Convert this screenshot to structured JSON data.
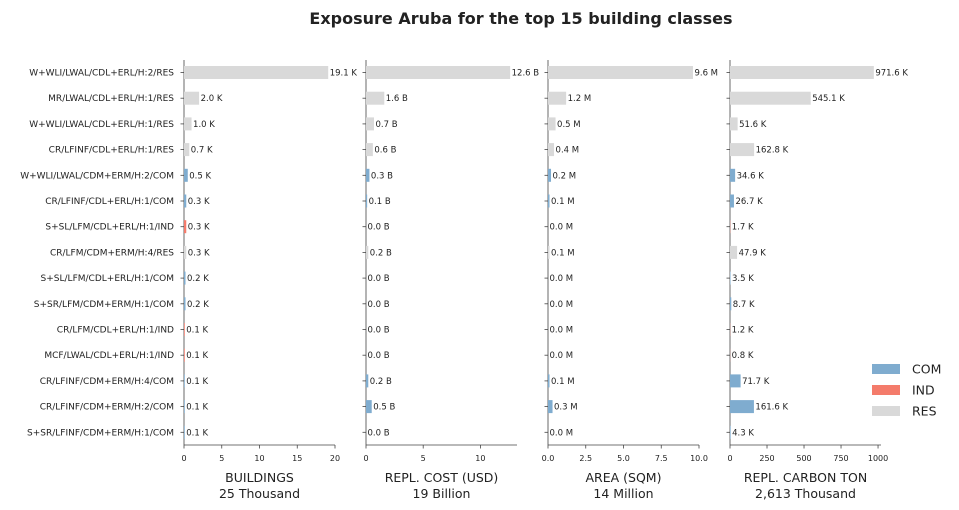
{
  "chart_data": {
    "type": "bar",
    "orientation": "horizontal",
    "title": "Exposure Aruba for the top 15 building classes",
    "categories": [
      "W+WLI/LWAL/CDL+ERL/H:2/RES",
      "MR/LWAL/CDL+ERL/H:1/RES",
      "W+WLI/LWAL/CDL+ERL/H:1/RES",
      "CR/LFINF/CDL+ERL/H:1/RES",
      "W+WLI/LWAL/CDM+ERM/H:2/COM",
      "CR/LFINF/CDL+ERL/H:1/COM",
      "S+SL/LFM/CDL+ERL/H:1/IND",
      "CR/LFM/CDM+ERM/H:4/RES",
      "S+SL/LFM/CDL+ERL/H:1/COM",
      "S+SR/LFM/CDM+ERM/H:1/COM",
      "CR/LFM/CDL+ERL/H:1/IND",
      "MCF/LWAL/CDL+ERL/H:1/IND",
      "CR/LFINF/CDM+ERM/H:4/COM",
      "CR/LFINF/CDM+ERM/H:2/COM",
      "S+SR/LFINF/CDM+ERM/H:1/COM"
    ],
    "occupancy": [
      "RES",
      "RES",
      "RES",
      "RES",
      "COM",
      "COM",
      "IND",
      "RES",
      "COM",
      "COM",
      "IND",
      "IND",
      "COM",
      "COM",
      "COM"
    ],
    "legend": {
      "placement": "right-bottom",
      "items": [
        {
          "name": "COM",
          "color": "#7faccf"
        },
        {
          "name": "IND",
          "color": "#f47b6b"
        },
        {
          "name": "RES",
          "color": "#d9d9d9"
        }
      ]
    },
    "panels": [
      {
        "xlabel": "BUILDINGS",
        "total": "25 Thousand",
        "xlim": [
          0,
          20
        ],
        "ticks": [
          "0",
          "5",
          "10",
          "15",
          "20"
        ],
        "tick_values": [
          0,
          5,
          10,
          15,
          20
        ],
        "values": [
          19.1,
          2.0,
          1.0,
          0.7,
          0.5,
          0.3,
          0.3,
          0.3,
          0.2,
          0.2,
          0.1,
          0.1,
          0.1,
          0.1,
          0.1
        ],
        "labels": [
          "19.1 K",
          "2.0 K",
          "1.0 K",
          "0.7 K",
          "0.5 K",
          "0.3 K",
          "0.3 K",
          "0.3 K",
          "0.2 K",
          "0.2 K",
          "0.1 K",
          "0.1 K",
          "0.1 K",
          "0.1 K",
          "0.1 K"
        ]
      },
      {
        "xlabel": "REPL. COST (USD)",
        "total": "19 Billion",
        "xlim": [
          0,
          13.2
        ],
        "ticks": [
          "0",
          "5",
          "10"
        ],
        "tick_values": [
          0,
          5,
          10
        ],
        "values": [
          12.6,
          1.6,
          0.7,
          0.6,
          0.3,
          0.1,
          0.0,
          0.2,
          0.0,
          0.0,
          0.0,
          0.0,
          0.2,
          0.5,
          0.0
        ],
        "labels": [
          "12.6 B",
          "1.6 B",
          "0.7 B",
          "0.6 B",
          "0.3 B",
          "0.1 B",
          "0.0 B",
          "0.2 B",
          "0.0 B",
          "0.0 B",
          "0.0 B",
          "0.0 B",
          "0.2 B",
          "0.5 B",
          "0.0 B"
        ]
      },
      {
        "xlabel": "AREA (SQM)",
        "total": "14 Million",
        "xlim": [
          0,
          10
        ],
        "ticks": [
          "0.0",
          "2.5",
          "5.0",
          "7.5",
          "10.0"
        ],
        "tick_values": [
          0,
          2.5,
          5,
          7.5,
          10
        ],
        "values": [
          9.6,
          1.2,
          0.5,
          0.4,
          0.2,
          0.1,
          0.0,
          0.1,
          0.0,
          0.0,
          0.0,
          0.0,
          0.1,
          0.3,
          0.0
        ],
        "labels": [
          "9.6 M",
          "1.2 M",
          "0.5 M",
          "0.4 M",
          "0.2 M",
          "0.1 M",
          "0.0 M",
          "0.1 M",
          "0.0 M",
          "0.0 M",
          "0.0 M",
          "0.0 M",
          "0.1 M",
          "0.3 M",
          "0.0 M"
        ]
      },
      {
        "xlabel": "REPL. CARBON TON",
        "total": "2,613 Thousand",
        "xlim": [
          0,
          1020
        ],
        "ticks": [
          "0",
          "250",
          "500",
          "750",
          "1000"
        ],
        "tick_values": [
          0,
          250,
          500,
          750,
          1000
        ],
        "values": [
          971.6,
          545.1,
          51.6,
          162.8,
          34.6,
          26.7,
          1.7,
          47.9,
          3.5,
          8.7,
          1.2,
          0.8,
          71.7,
          161.6,
          4.3
        ],
        "labels": [
          "971.6 K",
          "545.1 K",
          "51.6 K",
          "162.8 K",
          "34.6 K",
          "26.7 K",
          "1.7 K",
          "47.9 K",
          "3.5 K",
          "8.7 K",
          "1.2 K",
          "0.8 K",
          "71.7 K",
          "161.6 K",
          "4.3 K"
        ]
      }
    ]
  }
}
